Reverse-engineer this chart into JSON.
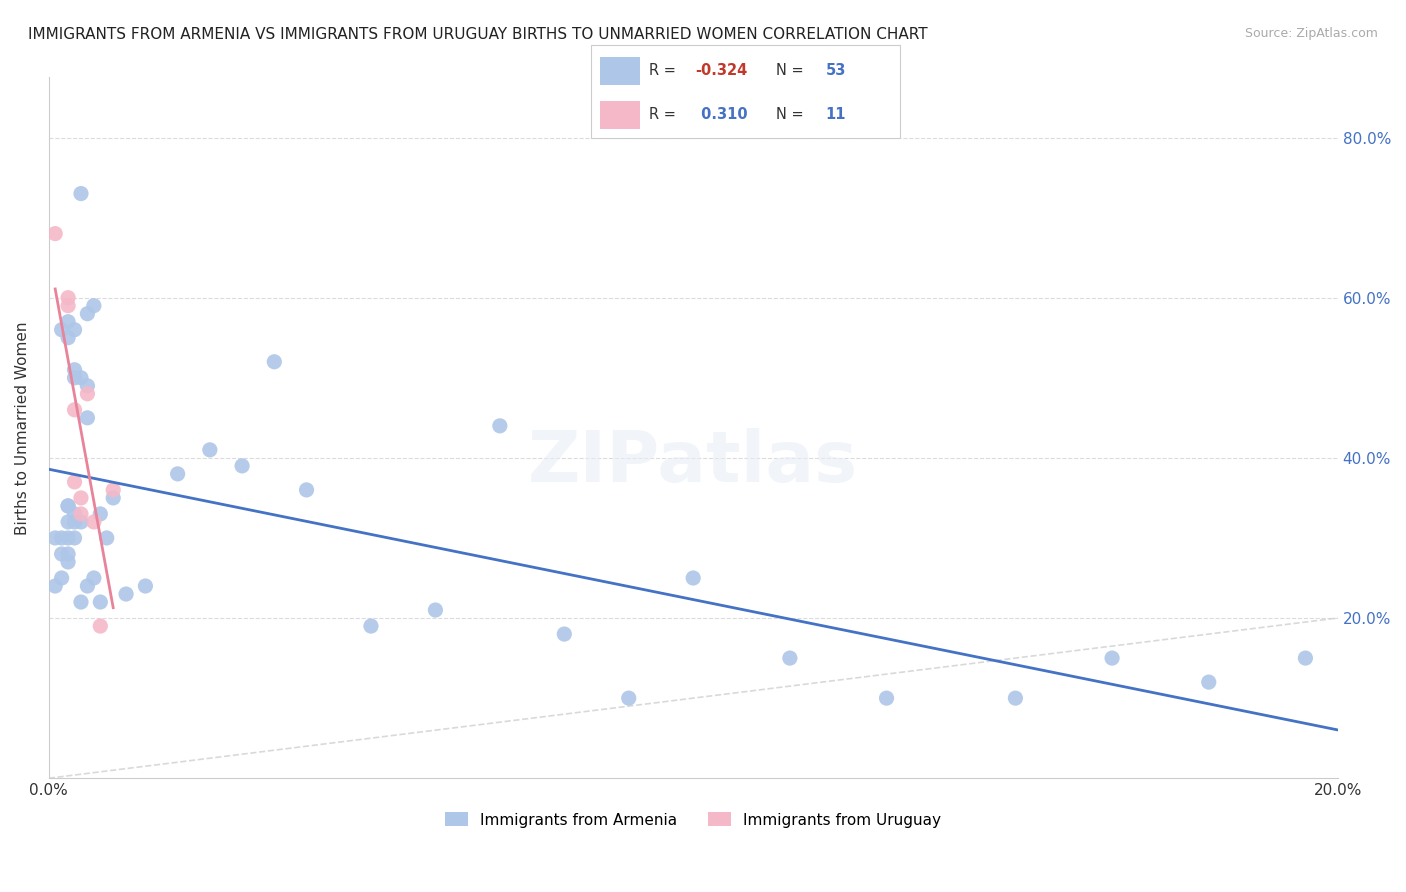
{
  "title": "IMMIGRANTS FROM ARMENIA VS IMMIGRANTS FROM URUGUAY BIRTHS TO UNMARRIED WOMEN CORRELATION CHART",
  "source": "Source: ZipAtlas.com",
  "ylabel": "Births to Unmarried Women",
  "xlim": [
    0.0,
    0.2
  ],
  "ylim": [
    0.0,
    0.875
  ],
  "armenia_R": -0.324,
  "armenia_N": 53,
  "uruguay_R": 0.31,
  "uruguay_N": 11,
  "armenia_color": "#aec6e8",
  "uruguay_color": "#f4b8c8",
  "armenia_line_color": "#4472c4",
  "uruguay_line_color": "#e8839a",
  "diagonal_color": "#d0d0d0",
  "background_color": "#ffffff",
  "grid_color": "#d3d3d3",
  "armenia_x": [
    0.003,
    0.005,
    0.003,
    0.007,
    0.004,
    0.006,
    0.008,
    0.002,
    0.003,
    0.004,
    0.005,
    0.006,
    0.003,
    0.004,
    0.004,
    0.005,
    0.006,
    0.002,
    0.003,
    0.003,
    0.004,
    0.003,
    0.002,
    0.001,
    0.001,
    0.002,
    0.003,
    0.004,
    0.005,
    0.006,
    0.007,
    0.008,
    0.009,
    0.01,
    0.012,
    0.015,
    0.02,
    0.025,
    0.03,
    0.035,
    0.04,
    0.05,
    0.06,
    0.07,
    0.08,
    0.09,
    0.1,
    0.115,
    0.13,
    0.15,
    0.165,
    0.18,
    0.195
  ],
  "armenia_y": [
    0.3,
    0.73,
    0.57,
    0.59,
    0.56,
    0.58,
    0.33,
    0.56,
    0.55,
    0.3,
    0.32,
    0.45,
    0.34,
    0.51,
    0.5,
    0.5,
    0.49,
    0.28,
    0.34,
    0.27,
    0.33,
    0.32,
    0.3,
    0.24,
    0.3,
    0.25,
    0.28,
    0.32,
    0.22,
    0.24,
    0.25,
    0.22,
    0.3,
    0.35,
    0.23,
    0.24,
    0.38,
    0.41,
    0.39,
    0.52,
    0.36,
    0.19,
    0.21,
    0.44,
    0.18,
    0.1,
    0.25,
    0.15,
    0.1,
    0.1,
    0.15,
    0.12,
    0.15
  ],
  "uruguay_x": [
    0.001,
    0.003,
    0.003,
    0.004,
    0.004,
    0.005,
    0.005,
    0.006,
    0.007,
    0.008,
    0.01
  ],
  "uruguay_y": [
    0.68,
    0.6,
    0.59,
    0.46,
    0.37,
    0.35,
    0.33,
    0.48,
    0.32,
    0.19,
    0.36
  ]
}
